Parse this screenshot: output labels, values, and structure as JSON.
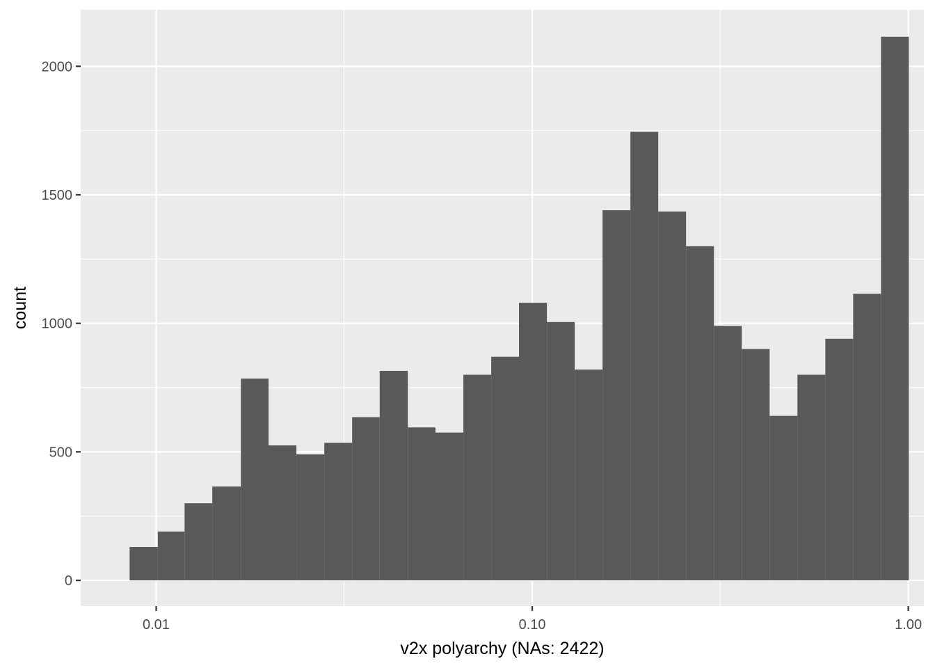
{
  "chart_data": {
    "type": "bar",
    "chart_kind": "histogram",
    "xlabel": "v2x polyarchy (NAs: 2422)",
    "ylabel": "count",
    "x_scale": "log10",
    "xlim": [
      0.0063,
      1.1
    ],
    "ylim": [
      -100,
      2220
    ],
    "grid": true,
    "legend": "none",
    "colors": {
      "bar": "#595959",
      "panel": "#ebebeb",
      "grid": "#ffffff"
    },
    "x_ticks": [
      {
        "value": 0.01,
        "label": "0.01"
      },
      {
        "value": 0.1,
        "label": "0.10"
      },
      {
        "value": 1.0,
        "label": "1.00"
      }
    ],
    "x_minor_ticks": [
      0.0316,
      0.316
    ],
    "y_ticks": [
      {
        "value": 0,
        "label": "0"
      },
      {
        "value": 500,
        "label": "500"
      },
      {
        "value": 1000,
        "label": "1000"
      },
      {
        "value": 1500,
        "label": "1500"
      },
      {
        "value": 2000,
        "label": "2000"
      }
    ],
    "y_minor_ticks": [
      250,
      750,
      1250,
      1750
    ],
    "bins": [
      {
        "x_min": 0.0085,
        "x_max": 0.0101,
        "count": 130
      },
      {
        "x_min": 0.0101,
        "x_max": 0.0119,
        "count": 190
      },
      {
        "x_min": 0.0119,
        "x_max": 0.0141,
        "count": 300
      },
      {
        "x_min": 0.0141,
        "x_max": 0.0168,
        "count": 365
      },
      {
        "x_min": 0.0168,
        "x_max": 0.0199,
        "count": 785
      },
      {
        "x_min": 0.0199,
        "x_max": 0.0236,
        "count": 525
      },
      {
        "x_min": 0.0236,
        "x_max": 0.028,
        "count": 490
      },
      {
        "x_min": 0.028,
        "x_max": 0.0332,
        "count": 535
      },
      {
        "x_min": 0.0332,
        "x_max": 0.0393,
        "count": 635
      },
      {
        "x_min": 0.0393,
        "x_max": 0.0467,
        "count": 815
      },
      {
        "x_min": 0.0467,
        "x_max": 0.0553,
        "count": 595
      },
      {
        "x_min": 0.0553,
        "x_max": 0.0656,
        "count": 575
      },
      {
        "x_min": 0.0656,
        "x_max": 0.0778,
        "count": 800
      },
      {
        "x_min": 0.0778,
        "x_max": 0.0922,
        "count": 870
      },
      {
        "x_min": 0.0922,
        "x_max": 0.1094,
        "count": 1080
      },
      {
        "x_min": 0.1094,
        "x_max": 0.1297,
        "count": 1005
      },
      {
        "x_min": 0.1297,
        "x_max": 0.1538,
        "count": 820
      },
      {
        "x_min": 0.1538,
        "x_max": 0.1824,
        "count": 1440
      },
      {
        "x_min": 0.1824,
        "x_max": 0.2163,
        "count": 1745
      },
      {
        "x_min": 0.2163,
        "x_max": 0.2565,
        "count": 1435
      },
      {
        "x_min": 0.2565,
        "x_max": 0.3042,
        "count": 1300
      },
      {
        "x_min": 0.3042,
        "x_max": 0.3607,
        "count": 990
      },
      {
        "x_min": 0.3607,
        "x_max": 0.4278,
        "count": 900
      },
      {
        "x_min": 0.4278,
        "x_max": 0.5073,
        "count": 640
      },
      {
        "x_min": 0.5073,
        "x_max": 0.6016,
        "count": 800
      },
      {
        "x_min": 0.6016,
        "x_max": 0.7134,
        "count": 940
      },
      {
        "x_min": 0.7134,
        "x_max": 0.846,
        "count": 1115
      },
      {
        "x_min": 0.846,
        "x_max": 1.0032,
        "count": 2115
      }
    ]
  }
}
